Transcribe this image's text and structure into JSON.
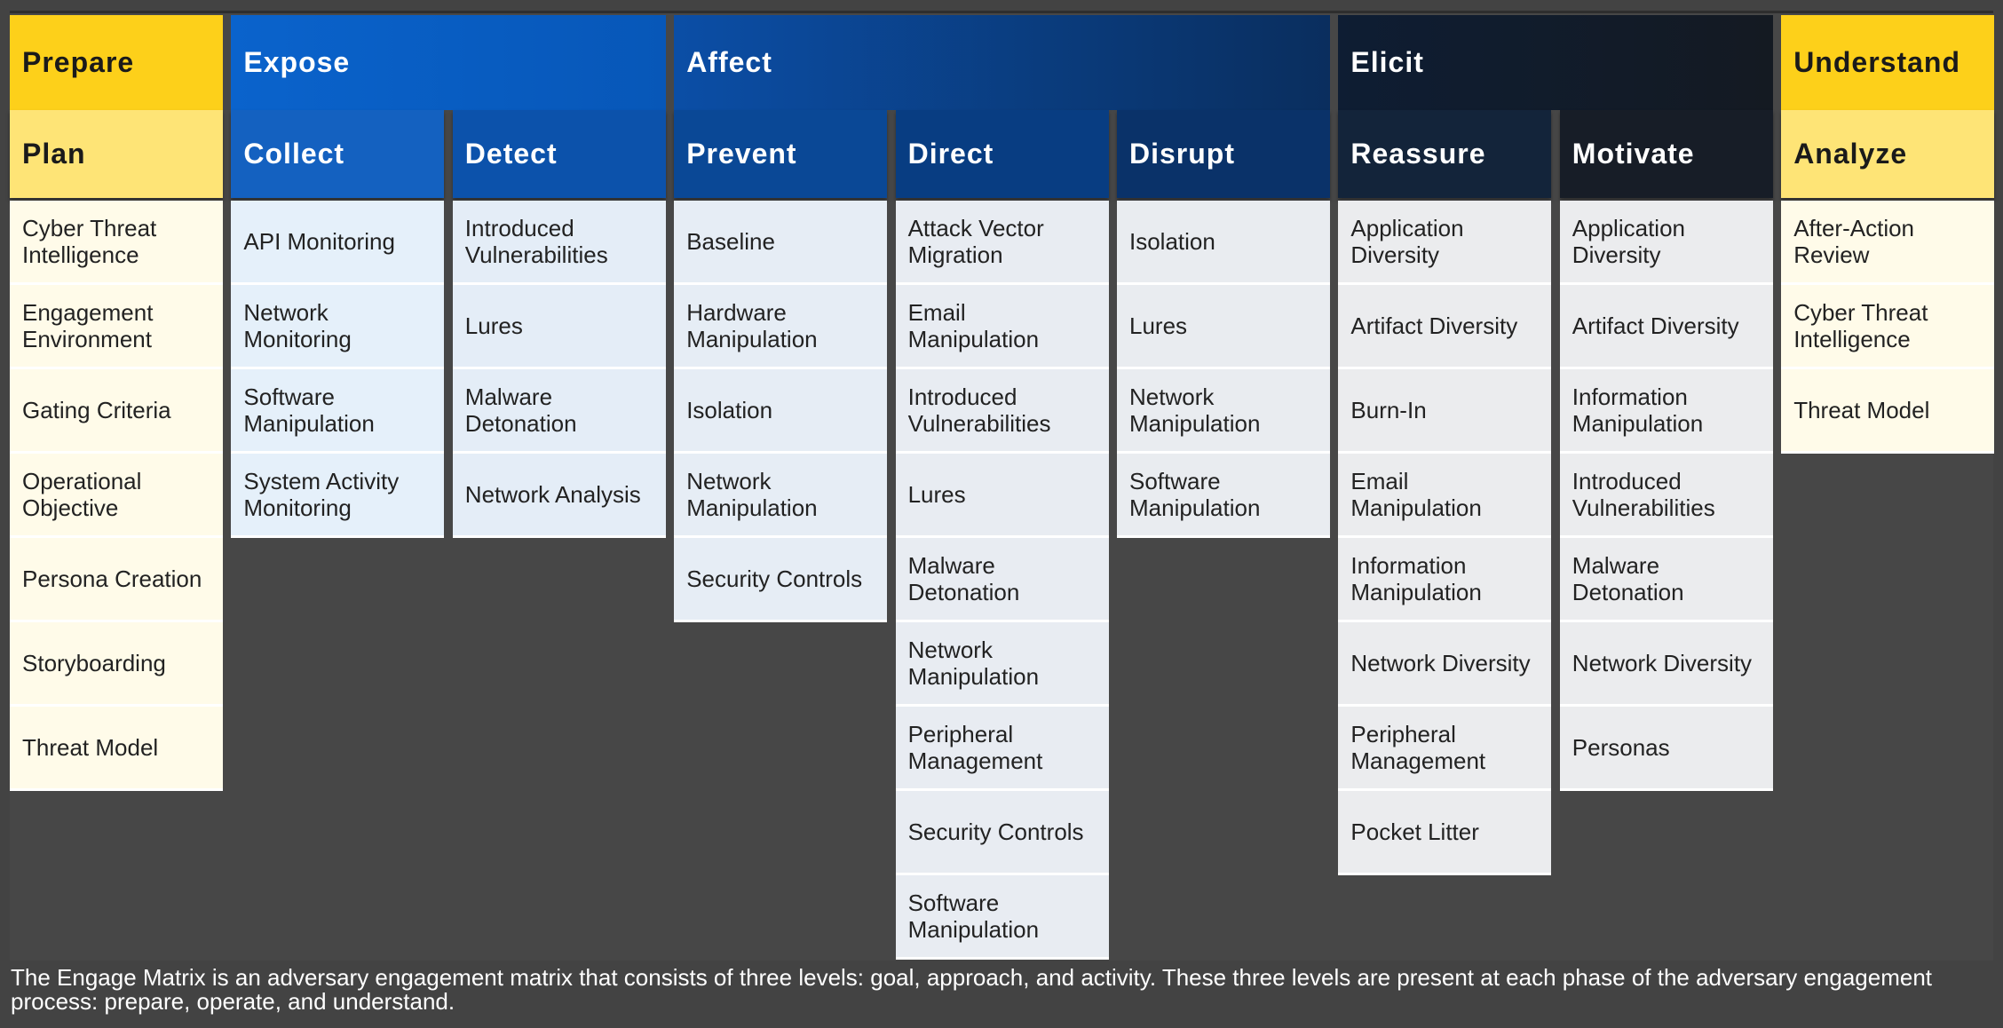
{
  "goals": [
    {
      "title": "Prepare",
      "approaches": [
        {
          "title": "Plan",
          "activities": [
            "Cyber Threat Intelligence",
            "Engagement Environment",
            "Gating Criteria",
            "Operational Objective",
            "Persona Creation",
            "Storyboarding",
            "Threat Model"
          ]
        }
      ]
    },
    {
      "title": "Expose",
      "approaches": [
        {
          "title": "Collect",
          "activities": [
            "API Monitoring",
            "Network Monitoring",
            "Software Manipulation",
            "System Activity Monitoring"
          ]
        },
        {
          "title": "Detect",
          "activities": [
            "Introduced Vulnerabilities",
            "Lures",
            "Malware Detonation",
            "Network Analysis"
          ]
        }
      ]
    },
    {
      "title": "Affect",
      "approaches": [
        {
          "title": "Prevent",
          "activities": [
            "Baseline",
            "Hardware Manipulation",
            "Isolation",
            "Network Manipulation",
            "Security Controls"
          ]
        },
        {
          "title": "Direct",
          "activities": [
            "Attack Vector Migration",
            "Email Manipulation",
            "Introduced Vulnerabilities",
            "Lures",
            "Malware Detonation",
            "Network Manipulation",
            "Peripheral Management",
            "Security Controls",
            "Software Manipulation"
          ]
        },
        {
          "title": "Disrupt",
          "activities": [
            "Isolation",
            "Lures",
            "Network Manipulation",
            "Software Manipulation"
          ]
        }
      ]
    },
    {
      "title": "Elicit",
      "approaches": [
        {
          "title": "Reassure",
          "activities": [
            "Application Diversity",
            "Artifact Diversity",
            "Burn-In",
            "Email Manipulation",
            "Information Manipulation",
            "Network Diversity",
            "Peripheral Management",
            "Pocket Litter"
          ]
        },
        {
          "title": "Motivate",
          "activities": [
            "Application Diversity",
            "Artifact Diversity",
            "Information Manipulation",
            "Introduced Vulnerabilities",
            "Malware Detonation",
            "Network Diversity",
            "Personas"
          ]
        }
      ]
    },
    {
      "title": "Understand",
      "approaches": [
        {
          "title": "Analyze",
          "activities": [
            "After-Action Review",
            "Cyber Threat Intelligence",
            "Threat Model"
          ]
        }
      ]
    }
  ],
  "caption": "The Engage Matrix is an adversary engagement matrix that consists of three levels: goal, approach, and activity. These three levels are present at each phase of the adversary engagement process: prepare, operate, and understand."
}
